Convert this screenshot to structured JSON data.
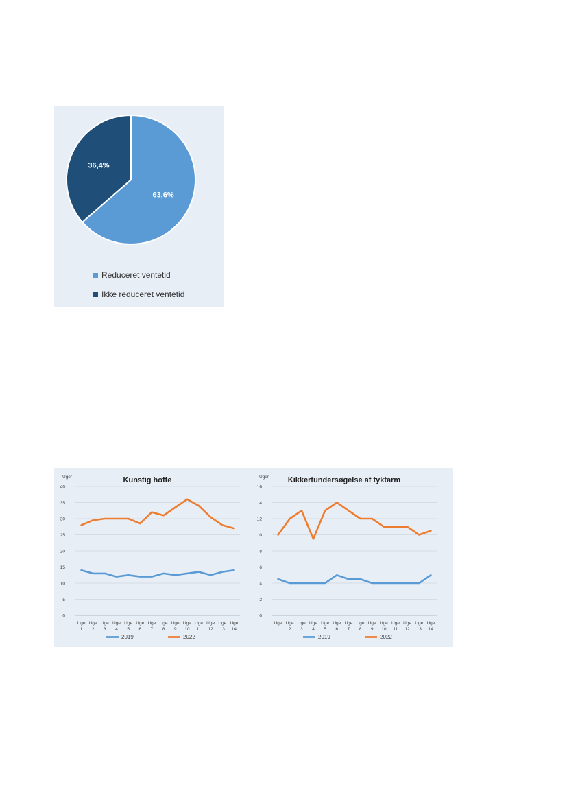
{
  "pie_chart": {
    "legend": [
      {
        "label": "Reduceret ventetid",
        "color": "#5b9bd5"
      },
      {
        "label": "Ikke reduceret ventetid",
        "color": "#1f4e79"
      }
    ]
  },
  "chart_data": [
    {
      "type": "pie",
      "labels": [
        "Reduceret ventetid",
        "Ikke reduceret ventetid"
      ],
      "values": [
        63.6,
        36.4
      ],
      "data_labels": [
        "63,6%",
        "36,4%"
      ],
      "colors": [
        "#5b9bd5",
        "#1f4e79"
      ],
      "legend_position": "bottom"
    },
    {
      "type": "line",
      "title": "Kunstig hofte",
      "ylabel": "Uger",
      "categories": [
        "Uge 1",
        "Uge 2",
        "Uge 3",
        "Uge 4",
        "Uge 5",
        "Uge 6",
        "Uge 7",
        "Uge 8",
        "Uge 9",
        "Uge 10",
        "Uge 11",
        "Uge 12",
        "Uge 13",
        "Uge 14"
      ],
      "ylim": [
        0,
        40
      ],
      "yticks": [
        0,
        5,
        10,
        15,
        20,
        25,
        30,
        35,
        40
      ],
      "grid": true,
      "legend_position": "bottom",
      "series": [
        {
          "name": "2019",
          "color": "#5b9bd5",
          "values": [
            14,
            13,
            13,
            12,
            12.5,
            12,
            12,
            13,
            12.5,
            13,
            13.5,
            12.5,
            13.5,
            14
          ]
        },
        {
          "name": "2022",
          "color": "#ed7d31",
          "values": [
            28,
            29.5,
            30,
            30,
            30,
            28.5,
            32,
            31,
            33.5,
            36,
            34,
            30.5,
            28,
            27
          ]
        }
      ]
    },
    {
      "type": "line",
      "title": "Kikkertundersøgelse af tyktarm",
      "ylabel": "Uger",
      "categories": [
        "Uge 1",
        "Uge 2",
        "Uge 3",
        "Uge 4",
        "Uge 5",
        "Uge 6",
        "Uge 7",
        "Uge 8",
        "Uge 9",
        "Uge 10",
        "Uge 11",
        "Uge 12",
        "Uge 13",
        "Uge 14"
      ],
      "ylim": [
        0,
        16
      ],
      "yticks": [
        0,
        2,
        4,
        6,
        8,
        10,
        12,
        14,
        16
      ],
      "grid": true,
      "legend_position": "bottom",
      "series": [
        {
          "name": "2019",
          "color": "#5b9bd5",
          "values": [
            4.5,
            4,
            4,
            4,
            4,
            5,
            4.5,
            4.5,
            4,
            4,
            4,
            4,
            4,
            5
          ]
        },
        {
          "name": "2022",
          "color": "#ed7d31",
          "values": [
            10,
            12,
            13,
            9.5,
            13,
            14,
            13,
            12,
            12,
            11,
            11,
            11,
            10,
            10.5
          ]
        }
      ]
    }
  ]
}
